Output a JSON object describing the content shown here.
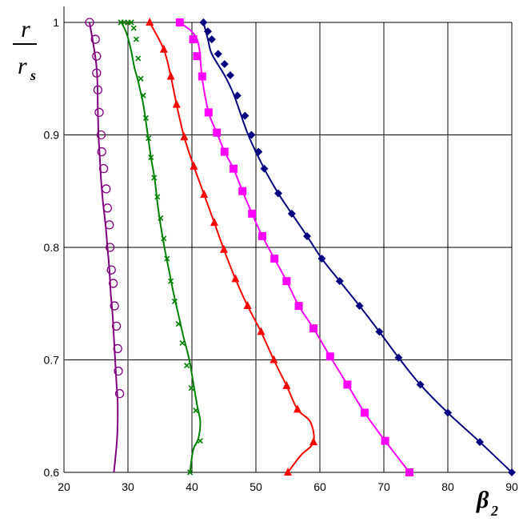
{
  "chart_data": {
    "type": "line",
    "title": "",
    "ylabel_num": "r",
    "ylabel_den": "r",
    "ylabel_den_sub": "s",
    "xlabel": "β",
    "xlabel_sub": "2",
    "xlim": [
      20,
      90
    ],
    "ylim": [
      0.6,
      1.0
    ],
    "x_ticks": [
      "20",
      "30",
      "40",
      "50",
      "60",
      "70",
      "80",
      "90"
    ],
    "y_ticks": [
      "0.6",
      "0.7",
      "0.8",
      "0.9",
      "1"
    ],
    "grid": true,
    "legend": "none",
    "series": [
      {
        "color": "#800080",
        "marker": "open-circle",
        "line_x": [
          27.8,
          28.3,
          28.4,
          28.2,
          28.0,
          27.8,
          27.6,
          27.3,
          27.1,
          26.8,
          26.5,
          26.1,
          25.8,
          25.6,
          25.4,
          25.3,
          25.1,
          24.0
        ],
        "line_y": [
          0.6,
          0.63,
          0.66,
          0.68,
          0.7,
          0.72,
          0.74,
          0.76,
          0.78,
          0.8,
          0.82,
          0.84,
          0.86,
          0.88,
          0.9,
          0.92,
          0.96,
          1.0
        ],
        "marker_x": [
          24.0,
          24.9,
          25.1,
          25.1,
          25.3,
          25.5,
          25.8,
          25.9,
          26.2,
          26.6,
          26.8,
          27.1,
          27.2,
          27.4,
          27.7,
          27.9,
          28.2,
          28.4,
          28.5,
          28.7
        ],
        "marker_y": [
          1.0,
          0.985,
          0.97,
          0.955,
          0.94,
          0.92,
          0.9,
          0.885,
          0.87,
          0.852,
          0.835,
          0.82,
          0.8,
          0.78,
          0.768,
          0.748,
          0.73,
          0.71,
          0.69,
          0.67
        ]
      },
      {
        "color": "#008000",
        "marker": "x",
        "line_x": [
          39.7,
          40.2,
          41.0,
          41.3,
          40.8,
          40.2,
          39.6,
          38.7,
          37.9,
          37.1,
          36.4,
          35.7,
          35.1,
          34.6,
          34.2,
          33.6,
          33.1,
          32.6,
          32.3,
          31.9,
          31.5,
          31.0,
          30.5,
          29.8,
          29.0
        ],
        "line_y": [
          0.6,
          0.62,
          0.63,
          0.645,
          0.66,
          0.68,
          0.7,
          0.72,
          0.74,
          0.76,
          0.78,
          0.8,
          0.82,
          0.84,
          0.86,
          0.88,
          0.9,
          0.92,
          0.93,
          0.94,
          0.95,
          0.96,
          0.975,
          0.99,
          1.0
        ],
        "marker_x": [
          39.7,
          41.3,
          40.6,
          39.9,
          39.2,
          38.5,
          37.9,
          37.3,
          36.7,
          36.1,
          35.6,
          35.1,
          34.6,
          34.1,
          33.6,
          33.2,
          32.8,
          32.4,
          32.0,
          31.6,
          31.3,
          30.9,
          30.5,
          30.0,
          29.4,
          28.9
        ],
        "marker_y": [
          0.6,
          0.628,
          0.655,
          0.675,
          0.695,
          0.715,
          0.732,
          0.752,
          0.77,
          0.79,
          0.808,
          0.826,
          0.845,
          0.862,
          0.88,
          0.897,
          0.915,
          0.935,
          0.95,
          0.968,
          0.985,
          0.995,
          1.0,
          1.0,
          1.0,
          1.0
        ]
      },
      {
        "color": "#ff0000",
        "marker": "filled-triangle",
        "line_x": [
          55.0,
          57.0,
          59.0,
          58.5,
          56.5,
          54.8,
          52.8,
          50.8,
          48.7,
          46.8,
          45.0,
          43.5,
          41.9,
          40.3,
          38.8,
          37.6,
          36.7,
          35.6,
          33.4
        ],
        "line_y": [
          0.6,
          0.615,
          0.627,
          0.645,
          0.656,
          0.677,
          0.7,
          0.725,
          0.748,
          0.772,
          0.798,
          0.822,
          0.847,
          0.872,
          0.898,
          0.927,
          0.952,
          0.976,
          1.0
        ],
        "marker_x": [
          55.0,
          59.0,
          56.5,
          54.8,
          52.8,
          50.8,
          48.7,
          46.8,
          45.0,
          43.5,
          41.9,
          40.3,
          38.8,
          37.6,
          36.7,
          35.6,
          33.4
        ],
        "marker_y": [
          0.6,
          0.627,
          0.656,
          0.677,
          0.7,
          0.725,
          0.748,
          0.772,
          0.798,
          0.822,
          0.847,
          0.872,
          0.898,
          0.927,
          0.952,
          0.976,
          1.0
        ]
      },
      {
        "color": "#ff00ff",
        "marker": "filled-square",
        "line_x": [
          74.0,
          70.2,
          67.0,
          64.3,
          61.6,
          59.0,
          56.7,
          54.8,
          52.9,
          51.0,
          49.4,
          47.9,
          46.5,
          45.1,
          43.9,
          42.6,
          41.6,
          40.8,
          38.1
        ],
        "line_y": [
          0.6,
          0.628,
          0.653,
          0.678,
          0.703,
          0.728,
          0.748,
          0.77,
          0.79,
          0.81,
          0.83,
          0.85,
          0.87,
          0.885,
          0.902,
          0.92,
          0.95,
          0.985,
          1.0
        ],
        "marker_x": [
          74.0,
          70.2,
          67.0,
          64.3,
          61.6,
          59.0,
          56.7,
          54.8,
          52.9,
          51.0,
          49.4,
          47.9,
          46.5,
          45.1,
          43.9,
          42.6,
          41.6,
          40.8,
          40.2,
          38.1
        ],
        "marker_y": [
          0.6,
          0.628,
          0.653,
          0.678,
          0.703,
          0.728,
          0.748,
          0.77,
          0.79,
          0.81,
          0.83,
          0.85,
          0.87,
          0.885,
          0.902,
          0.92,
          0.952,
          0.97,
          0.985,
          1.0
        ]
      },
      {
        "color": "#000080",
        "marker": "filled-diamond",
        "line_x": [
          90.0,
          85.0,
          80.0,
          75.7,
          72.3,
          69.3,
          66.2,
          63.1,
          60.3,
          58.0,
          55.6,
          53.5,
          51.3,
          48.8,
          46.6,
          45.1,
          43.1,
          42.5,
          41.8
        ],
        "line_y": [
          0.6,
          0.627,
          0.653,
          0.678,
          0.702,
          0.725,
          0.748,
          0.77,
          0.79,
          0.81,
          0.83,
          0.848,
          0.87,
          0.9,
          0.935,
          0.953,
          0.972,
          0.985,
          1.0
        ],
        "marker_x": [
          90.0,
          85.0,
          80.0,
          75.7,
          72.3,
          69.3,
          66.2,
          63.1,
          60.3,
          58.0,
          55.6,
          53.5,
          51.3,
          50.4,
          49.3,
          48.3,
          47.1,
          46.0,
          45.1,
          44.1,
          43.1,
          42.5,
          41.8
        ],
        "marker_y": [
          0.6,
          0.627,
          0.653,
          0.678,
          0.702,
          0.725,
          0.748,
          0.77,
          0.79,
          0.81,
          0.83,
          0.848,
          0.87,
          0.885,
          0.9,
          0.917,
          0.935,
          0.953,
          0.963,
          0.972,
          0.985,
          0.992,
          1.0
        ]
      }
    ]
  }
}
